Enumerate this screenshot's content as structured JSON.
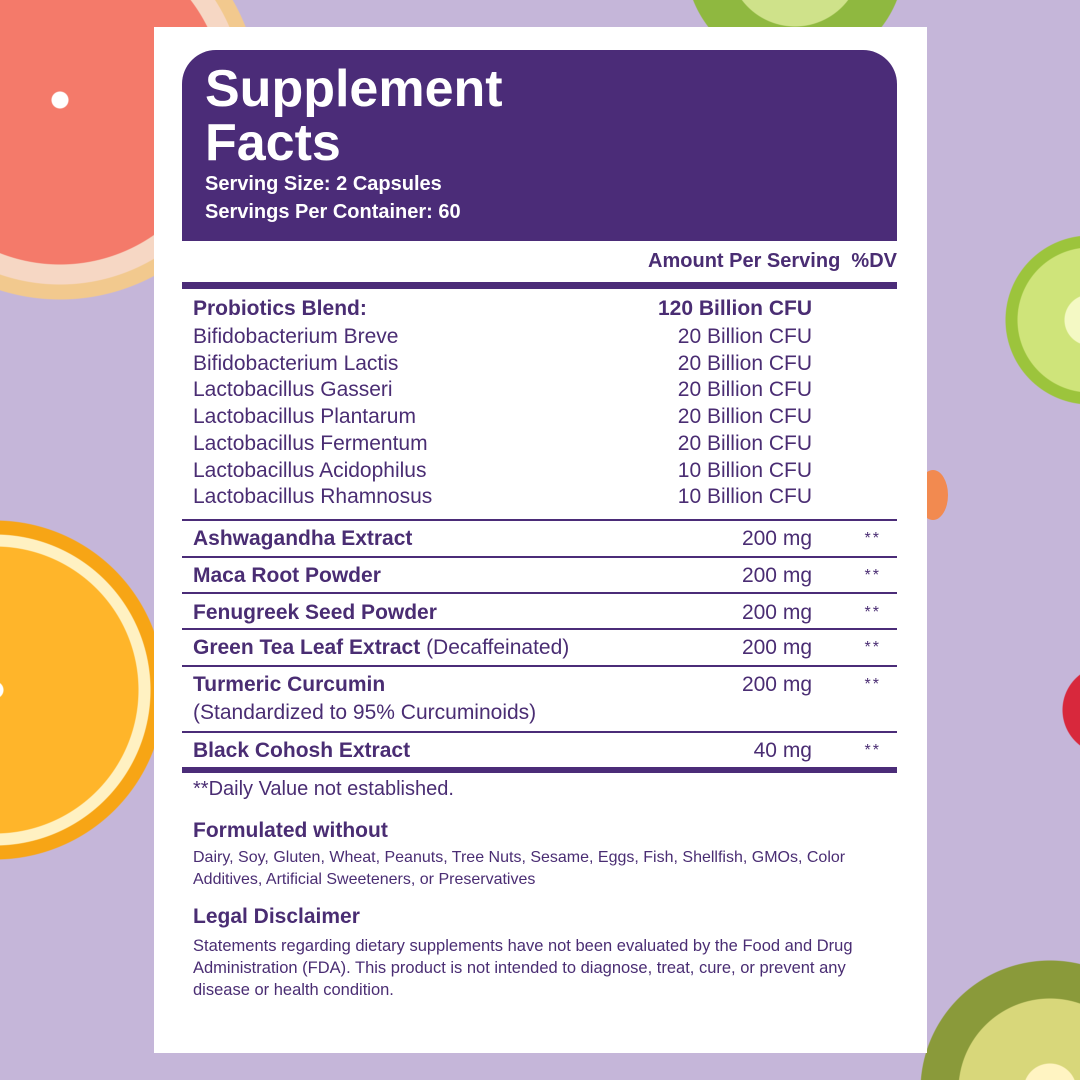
{
  "header": {
    "title_line1": "Supplement",
    "title_line2": "Facts",
    "serving_size": "Serving Size: 2 Capsules",
    "servings_per_container": "Servings Per Container: 60"
  },
  "columns": {
    "amount": "Amount Per Serving",
    "dv": "%DV"
  },
  "probiotics": {
    "name": "Probiotics Blend:",
    "amount": "120 Billion CFU",
    "strains": [
      {
        "name": "Bifidobacterium Breve",
        "amount": "20 Billion CFU"
      },
      {
        "name": "Bifidobacterium Lactis",
        "amount": "20 Billion CFU"
      },
      {
        "name": "Lactobacillus Gasseri",
        "amount": "20 Billion CFU"
      },
      {
        "name": "Lactobacillus Plantarum",
        "amount": "20 Billion CFU"
      },
      {
        "name": "Lactobacillus Fermentum",
        "amount": "20 Billion CFU"
      },
      {
        "name": "Lactobacillus Acidophilus",
        "amount": "10 Billion CFU"
      },
      {
        "name": "Lactobacillus Rhamnosus",
        "amount": "10 Billion CFU"
      }
    ]
  },
  "ingredients": [
    {
      "name": "Ashwagandha Extract",
      "note": "",
      "amount": "200 mg",
      "dv": "**"
    },
    {
      "name": "Maca Root Powder",
      "note": "",
      "amount": "200 mg",
      "dv": "**"
    },
    {
      "name": "Fenugreek Seed Powder",
      "note": "",
      "amount": "200 mg",
      "dv": "**"
    },
    {
      "name": "Green Tea Leaf Extract",
      "note": "(Decaffeinated)",
      "amount": "200 mg",
      "dv": "**"
    },
    {
      "name": "Turmeric Curcumin",
      "note": "(Standardized to 95% Curcuminoids)",
      "amount": "200 mg",
      "dv": "**"
    },
    {
      "name": "Black Cohosh Extract",
      "note": "",
      "amount": "40 mg",
      "dv": "**"
    }
  ],
  "footnote": "**Daily Value not established.",
  "formulated": {
    "title": "Formulated without",
    "text": "Dairy, Soy, Gluten, Wheat, Peanuts, Tree Nuts, Sesame, Eggs, Fish, Shellfish, GMOs, Color Additives, Artificial Sweeteners, or Preservatives"
  },
  "disclaimer": {
    "title": "Legal Disclaimer",
    "text": "Statements regarding dietary supplements have not been evaluated by the Food and Drug Administration (FDA). This product is not intended to diagnose, treat, cure, or prevent any disease or health condition."
  },
  "colors": {
    "brand_purple": "#4b2c78",
    "background": "#c5b6d9"
  }
}
